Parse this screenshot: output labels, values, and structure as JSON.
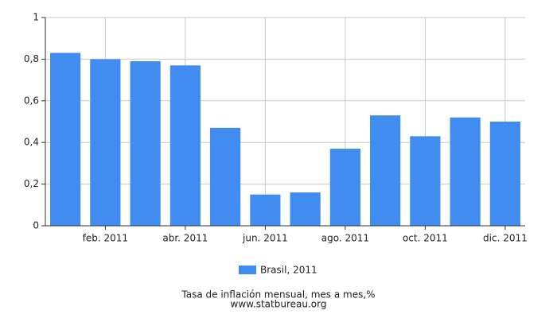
{
  "chart_data": {
    "type": "bar",
    "title": "Tasa de inflación mensual, mes a mes,%",
    "source": "www.statbureau.org",
    "categories": [
      null,
      "feb. 2011",
      null,
      "abr. 2011",
      null,
      "jun. 2011",
      null,
      "ago. 2011",
      null,
      "oct. 2011",
      null,
      "dic. 2011"
    ],
    "series": [
      {
        "name": "Brasil, 2011",
        "color": "#418cf0",
        "values": [
          0.83,
          0.8,
          0.79,
          0.77,
          0.47,
          0.15,
          0.16,
          0.37,
          0.53,
          0.43,
          0.52,
          0.5
        ]
      }
    ],
    "ylim": [
      0,
      1
    ],
    "yticks": [
      0,
      {
        "value": 0.2,
        "label": "0,2"
      },
      {
        "value": 0.4,
        "label": "0,4"
      },
      {
        "value": 0.6,
        "label": "0,6"
      },
      {
        "value": 0.8,
        "label": "0,8"
      },
      1
    ],
    "grid": true
  }
}
